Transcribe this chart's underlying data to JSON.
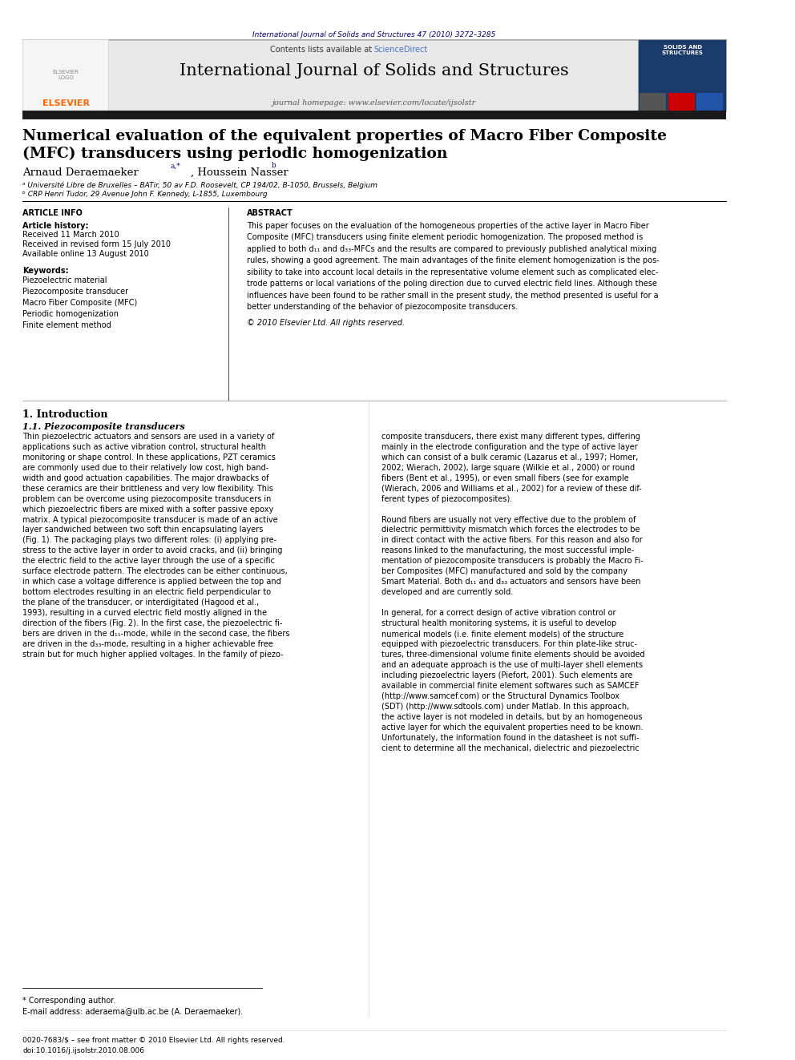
{
  "page_width": 9.92,
  "page_height": 13.23,
  "background_color": "#ffffff",
  "header_text": "International Journal of Solids and Structures 47 (2010) 3272–3285",
  "header_text_color": "#000080",
  "journal_title": "International Journal of Solids and Structures",
  "journal_homepage": "journal homepage: www.elsevier.com/locate/ijsolstr",
  "contents_text": "Contents lists available at ",
  "sciencedirect_text": "ScienceDirect",
  "sciencedirect_color": "#4472c4",
  "banner_bg": "#e8e8e8",
  "black_bar_color": "#1a1a1a",
  "paper_title_line1": "Numerical evaluation of the equivalent properties of Macro Fiber Composite",
  "paper_title_line2": "(MFC) transducers using periodic homogenization",
  "paper_title_color": "#000000",
  "author1": "Arnaud Deraemaeker",
  "author1_sup": "a,*",
  "author2": ", Houssein Nasser",
  "author2_sup": "b",
  "affil1": "ᵃ Université Libre de Bruxelles – BATir, 50 av F.D. Roosevelt, CP 194/02, B-1050, Brussels, Belgium",
  "affil2": "ᵇ CRP Henri Tudor, 29 Avenue John F. Kennedy, L-1855, Luxembourg",
  "article_info_header": "ARTICLE INFO",
  "abstract_header": "ABSTRACT",
  "article_history_label": "Article history:",
  "received1": "Received 11 March 2010",
  "received2": "Received in revised form 15 July 2010",
  "available": "Available online 13 August 2010",
  "keywords_label": "Keywords:",
  "kw1": "Piezoelectric material",
  "kw2": "Piezocomposite transducer",
  "kw3": "Macro Fiber Composite (MFC)",
  "kw4": "Periodic homogenization",
  "kw5": "Finite element method",
  "copyright": "© 2010 Elsevier Ltd. All rights reserved.",
  "intro_header": "1. Introduction",
  "intro_sub": "1.1. Piezocomposite transducers",
  "footnote_star": "* Corresponding author.",
  "footnote_email": "E-mail address: aderaema@ulb.ac.be (A. Deraemaeker).",
  "footer_issn": "0020-7683/$ – see front matter © 2010 Elsevier Ltd. All rights reserved.",
  "footer_doi": "doi:10.1016/j.ijsolstr.2010.08.006",
  "elsevier_color": "#FF6600",
  "cover_dark": "#1a3a6b",
  "cover_bars": [
    "#555555",
    "#cc0000",
    "#2255aa"
  ]
}
